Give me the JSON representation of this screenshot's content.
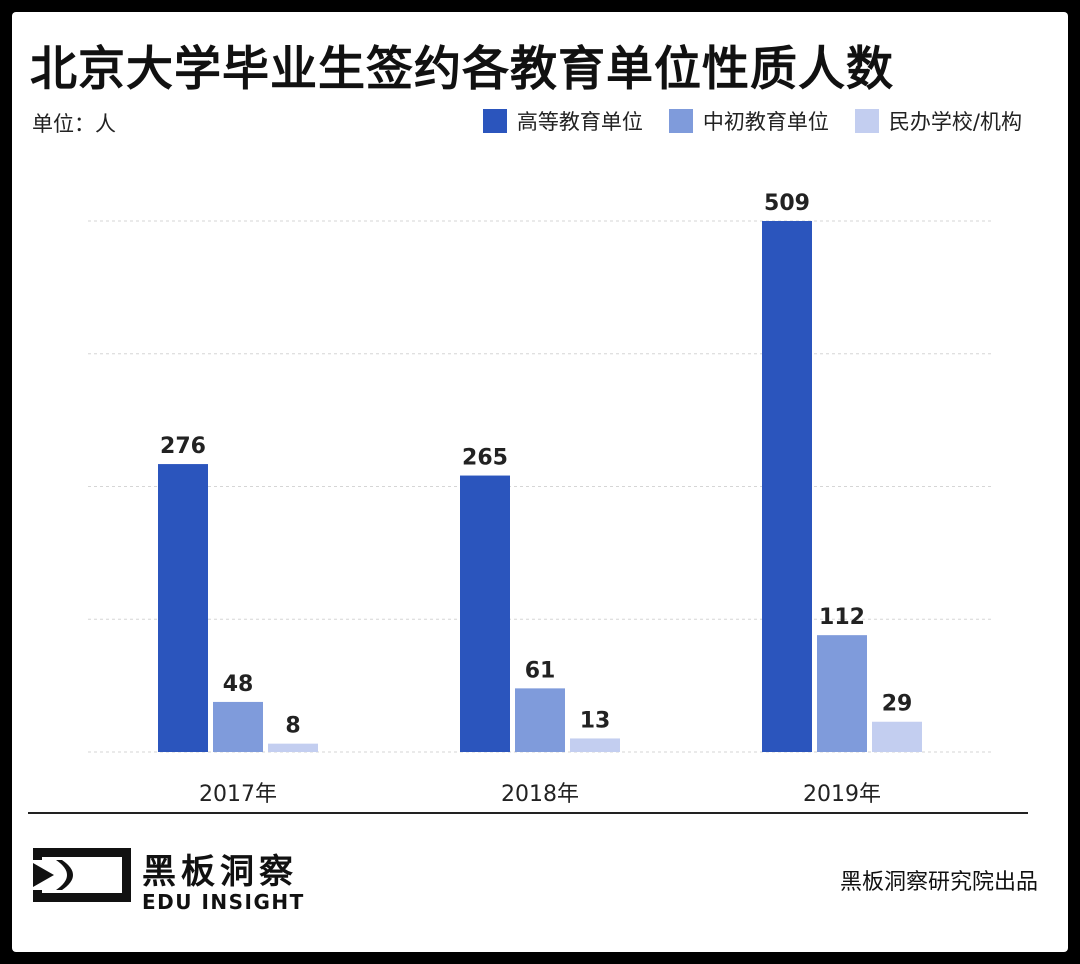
{
  "header": {
    "title": "北京大学毕业生签约各教育单位性质人数",
    "unit": "单位：人"
  },
  "legend": [
    {
      "label": "高等教育单位",
      "color": "#2b55bd"
    },
    {
      "label": "中初教育单位",
      "color": "#7f9bdb"
    },
    {
      "label": "民办学校/机构",
      "color": "#c3cef0"
    }
  ],
  "chart_data": {
    "type": "bar",
    "categories": [
      "2017年",
      "2018年",
      "2019年"
    ],
    "series": [
      {
        "name": "高等教育单位",
        "values": [
          276,
          265,
          509
        ],
        "color": "#2b55bd"
      },
      {
        "name": "中初教育单位",
        "values": [
          48,
          61,
          112
        ],
        "color": "#7f9bdb"
      },
      {
        "name": "民办学校/机构",
        "values": [
          8,
          13,
          29
        ],
        "color": "#c3cef0"
      }
    ],
    "ylim": [
      0,
      600
    ],
    "grid": true,
    "grid_style": "dashed",
    "legend_position": "top-right"
  },
  "footer": {
    "brand_cn": "黑板洞察",
    "brand_en": "EDU INSIGHT",
    "credit": "黑板洞察研究院出品"
  }
}
